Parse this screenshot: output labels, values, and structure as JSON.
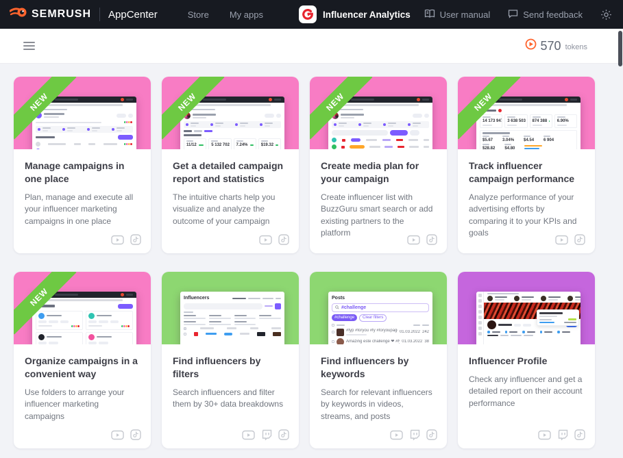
{
  "navbar": {
    "brand": "SEMRUSH",
    "suite": "AppCenter",
    "links": [
      "Store",
      "My apps"
    ],
    "app_name": "Influencer Analytics",
    "user_manual": "User manual",
    "send_feedback": "Send feedback"
  },
  "toolbar": {
    "tokens_value": "570",
    "tokens_unit": "tokens"
  },
  "colors": {
    "navbar_bg": "#171a21",
    "accent_orange": "#ff642d",
    "thumb_pink": "#f87cc4",
    "thumb_green": "#8dd771",
    "thumb_purple": "#c566dd",
    "ribbon_green": "#6ec943"
  },
  "cards": [
    {
      "title": "Manage campaigns in one place",
      "description": "Plan, manage and execute all your influencer marketing campaigns in one place",
      "badge": "NEW",
      "theme": "pink",
      "variant": "campaigns",
      "platforms": [
        "youtube",
        "tiktok"
      ],
      "thumb": {}
    },
    {
      "title": "Get a detailed campaign report and statistics",
      "description": "The intuitive charts help you visualize and analyze the outcome of your campaign",
      "badge": "NEW",
      "theme": "pink",
      "variant": "report",
      "platforms": [
        "youtube",
        "tiktok"
      ],
      "thumb": {
        "stats": [
          "11/12",
          "5 132 702",
          "7.24%",
          "$19.32"
        ]
      }
    },
    {
      "title": "Create media plan for your campaign",
      "description": "Create influencer list with BuzzGuru smart search or add existing partners to the platform",
      "badge": "NEW",
      "theme": "pink",
      "variant": "mediaplan",
      "platforms": [
        "youtube",
        "tiktok"
      ],
      "thumb": {}
    },
    {
      "title": "Track influencer campaign performance",
      "description": "Analyze performance of your advertising efforts by comparing it to your KPIs and goals",
      "badge": "NEW",
      "theme": "pink",
      "variant": "performance",
      "platforms": [
        "youtube",
        "tiktok"
      ],
      "thumb": {
        "stats": [
          "14 173 947",
          "3 638 503",
          "874 388",
          "6.90%"
        ],
        "substats": [
          "$5.67",
          "3.04%",
          "$4.54",
          "6 904",
          "$28.82",
          "$4.80"
        ]
      }
    },
    {
      "title": "Organize campaigns in a convenient way",
      "description": "Use folders to arrange your influencer marketing campaigns",
      "badge": "NEW",
      "theme": "pink",
      "variant": "folders",
      "platforms": [
        "youtube",
        "tiktok"
      ],
      "thumb": {}
    },
    {
      "title": "Find influencers by filters",
      "description": "Search influencers and filter them by 30+ data breakdowns",
      "badge": "",
      "theme": "green",
      "variant": "filters",
      "platforms": [
        "youtube",
        "twitch",
        "tiktok"
      ],
      "thumb": {
        "heading": "Influencers"
      }
    },
    {
      "title": "Find influencers by keywords",
      "description": "Search for relevant influencers by keywords in videos, streams, and posts",
      "badge": "",
      "theme": "green",
      "variant": "posts",
      "platforms": [
        "youtube",
        "twitch",
        "tiktok"
      ],
      "thumb": {
        "heading": "Posts",
        "search": "#challenge",
        "chip": "#challenge",
        "clear_button": "Clear filters",
        "rows": [
          {
            "text": "#fyp #foryou #fy #foryoupage #challenge #parati #trendin..",
            "date": "01.03.2022",
            "views": "242"
          },
          {
            "text": "Amazing este challenge ❤ #fyp",
            "date": "01.03.2022",
            "views": "38"
          }
        ]
      }
    },
    {
      "title": "Influencer Profile",
      "description": "Check any influencer and get a detailed report on their account performance",
      "badge": "",
      "theme": "purple",
      "variant": "profile",
      "platforms": [
        "youtube",
        "twitch",
        "tiktok"
      ],
      "thumb": {}
    }
  ]
}
